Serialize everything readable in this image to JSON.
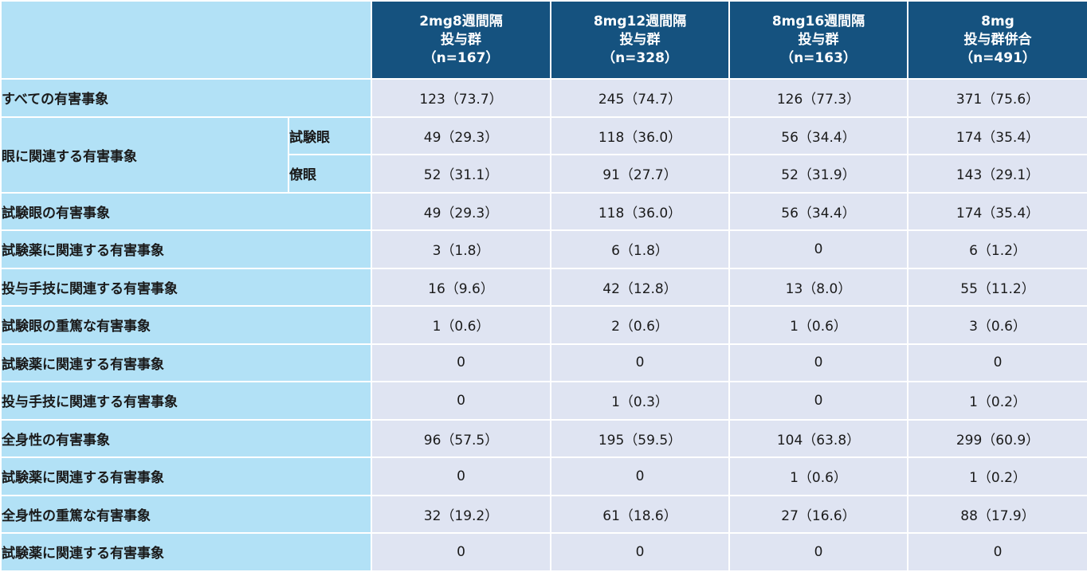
{
  "columns": [
    {
      "line1": "2mg8週間隔",
      "line2": "投与群",
      "line3": "（n=167）"
    },
    {
      "line1": "8mg12週間隔",
      "line2": "投与群",
      "line3": "（n=328）"
    },
    {
      "line1": "8mg16週間隔",
      "line2": "投与群",
      "line3": "（n=163）"
    },
    {
      "line1": "8mg",
      "line2": "投与群併合",
      "line3": "（n=491）"
    }
  ],
  "rows": [
    {
      "label": "すべての有害事象",
      "values": [
        "123（73.7）",
        "245（74.7）",
        "126（77.3）",
        "371（75.6）"
      ]
    },
    {
      "label": "眼に関連する有害事象",
      "sublabel": "試験眼",
      "values": [
        "49（29.3）",
        "118（36.0）",
        "56（34.4）",
        "174（35.4）"
      ]
    },
    {
      "sublabel": "僚眼",
      "values": [
        "52（31.1）",
        "91（27.7）",
        "52（31.9）",
        "143（29.1）"
      ]
    },
    {
      "label": "試験眼の有害事象",
      "values": [
        "49（29.3）",
        "118（36.0）",
        "56（34.4）",
        "174（35.4）"
      ]
    },
    {
      "label": "試験薬に関連する有害事象",
      "values": [
        "3（1.8）",
        "6（1.8）",
        "0",
        "6（1.2）"
      ]
    },
    {
      "label": "投与手技に関連する有害事象",
      "values": [
        "16（9.6）",
        "42（12.8）",
        "13（8.0）",
        "55（11.2）"
      ]
    },
    {
      "label": "試験眼の重篤な有害事象",
      "values": [
        "1（0.6）",
        "2（0.6）",
        "1（0.6）",
        "3（0.6）"
      ]
    },
    {
      "label": "試験薬に関連する有害事象",
      "values": [
        "0",
        "0",
        "0",
        "0"
      ]
    },
    {
      "label": "投与手技に関連する有害事象",
      "values": [
        "0",
        "1（0.3）",
        "0",
        "1（0.2）"
      ]
    },
    {
      "label": "全身性の有害事象",
      "values": [
        "96（57.5）",
        "195（59.5）",
        "104（63.8）",
        "299（60.9）"
      ]
    },
    {
      "label": "試験薬に関連する有害事象",
      "values": [
        "0",
        "0",
        "1（0.6）",
        "1（0.2）"
      ]
    },
    {
      "label": "全身性の重篤な有害事象",
      "values": [
        "32（19.2）",
        "61（18.6）",
        "27（16.6）",
        "88（17.9）"
      ]
    },
    {
      "label": "試験薬に関連する有害事象",
      "values": [
        "0",
        "0",
        "0",
        "0"
      ]
    }
  ]
}
